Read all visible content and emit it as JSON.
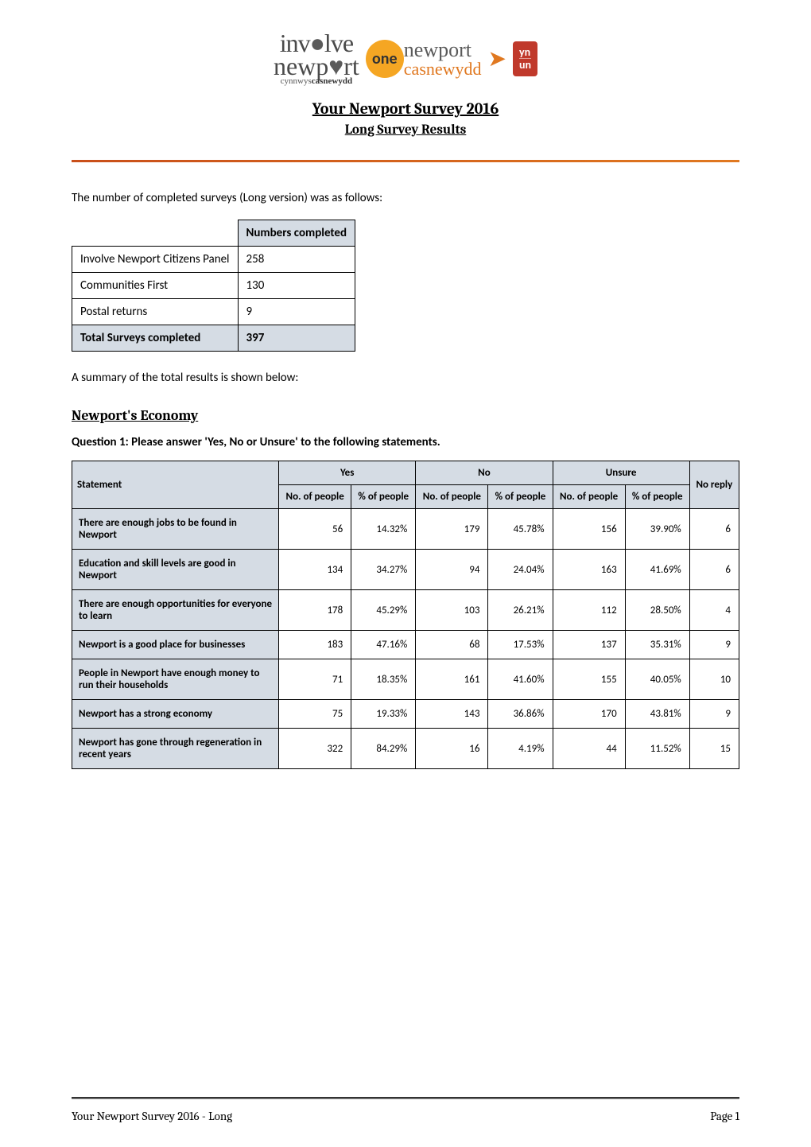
{
  "title": "Your Newport Survey 2016",
  "subtitle": "Long Survey Results",
  "intro": "The number of completed surveys (Long version) was as follows:",
  "table1": {
    "header_col": "Numbers completed",
    "rows": [
      {
        "label": "Involve Newport Citizens Panel",
        "value": "258"
      },
      {
        "label": "Communities First",
        "value": "130"
      },
      {
        "label": "Postal returns",
        "value": "9"
      }
    ],
    "total_label": "Total Surveys completed",
    "total_value": "397"
  },
  "summary": "A summary of the total results is shown below:",
  "section1": {
    "heading": "Newport's Economy",
    "question": "Question 1: Please answer 'Yes, No or Unsure' to the following statements.",
    "columns": {
      "statement": "Statement",
      "yes": "Yes",
      "no": "No",
      "unsure": "Unsure",
      "no_reply": "No reply",
      "no_people": "No. of people",
      "pct_people": "% of people"
    },
    "rows": [
      {
        "statement": "There are enough jobs to be found in Newport",
        "yes_n": "56",
        "yes_p": "14.32%",
        "no_n": "179",
        "no_p": "45.78%",
        "un_n": "156",
        "un_p": "39.90%",
        "nr": "6"
      },
      {
        "statement": "Education and skill levels are good in Newport",
        "yes_n": "134",
        "yes_p": "34.27%",
        "no_n": "94",
        "no_p": "24.04%",
        "un_n": "163",
        "un_p": "41.69%",
        "nr": "6"
      },
      {
        "statement": "There are enough opportunities for everyone to learn",
        "yes_n": "178",
        "yes_p": "45.29%",
        "no_n": "103",
        "no_p": "26.21%",
        "un_n": "112",
        "un_p": "28.50%",
        "nr": "4"
      },
      {
        "statement": "Newport is a good place for businesses",
        "yes_n": "183",
        "yes_p": "47.16%",
        "no_n": "68",
        "no_p": "17.53%",
        "un_n": "137",
        "un_p": "35.31%",
        "nr": "9"
      },
      {
        "statement": "People in Newport have enough money to run their households",
        "yes_n": "71",
        "yes_p": "18.35%",
        "no_n": "161",
        "no_p": "41.60%",
        "un_n": "155",
        "un_p": "40.05%",
        "nr": "10"
      },
      {
        "statement": "Newport has a strong economy",
        "yes_n": "75",
        "yes_p": "19.33%",
        "no_n": "143",
        "no_p": "36.86%",
        "un_n": "170",
        "un_p": "43.81%",
        "nr": "9"
      },
      {
        "statement": "Newport has gone through regeneration in recent years",
        "yes_n": "322",
        "yes_p": "84.29%",
        "no_n": "16",
        "no_p": "4.19%",
        "un_n": "44",
        "un_p": "11.52%",
        "nr": "15"
      }
    ]
  },
  "footer_left": "Your Newport Survey 2016 - Long",
  "footer_right": "Page 1",
  "colors": {
    "table_header_bg": "#d5dce4",
    "divider": "#e07820",
    "text": "#000000",
    "bg": "#ffffff"
  }
}
